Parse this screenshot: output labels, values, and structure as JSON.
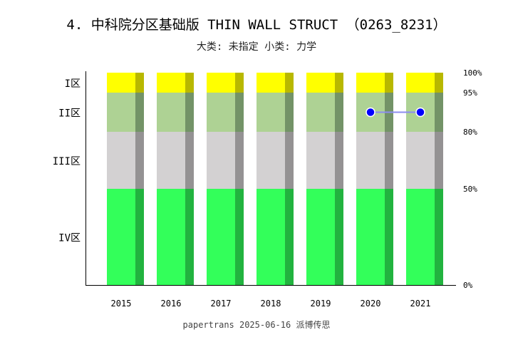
{
  "title": "4. 中科院分区基础版 THIN WALL STRUCT （0263_8231）",
  "subtitle": "大类: 未指定 小类: 力学",
  "footer": "papertrans 2025-06-16 派博传思",
  "chart_data": {
    "type": "bar",
    "title": "4. 中科院分区基础版 THIN WALL STRUCT （0263_8231）",
    "subtitle": "大类: 未指定 小类: 力学",
    "categories": [
      "2015",
      "2016",
      "2017",
      "2018",
      "2019",
      "2020",
      "2021"
    ],
    "zones": [
      {
        "label": "IV区",
        "from": 0,
        "to": 50,
        "color": "#33ff5a",
        "shade": "#22b33f"
      },
      {
        "label": "III区",
        "from": 50,
        "to": 80,
        "color": "#d3d1d2",
        "shade": "#949293"
      },
      {
        "label": "II区",
        "from": 80,
        "to": 95,
        "color": "#aed294",
        "shade": "#739367"
      },
      {
        "label": "I区",
        "from": 95,
        "to": 100,
        "color": "#ffff00",
        "shade": "#b8b800"
      }
    ],
    "right_ticks": [
      "0%",
      "50%",
      "80%",
      "95%",
      "100%"
    ],
    "right_tick_values": [
      0,
      50,
      80,
      95,
      100
    ],
    "series": [
      {
        "values": [
          null,
          null,
          null,
          null,
          null,
          "II区",
          "II区"
        ],
        "color": "#0000ff",
        "line_color": "#8c8cf0"
      }
    ],
    "grid": false
  }
}
